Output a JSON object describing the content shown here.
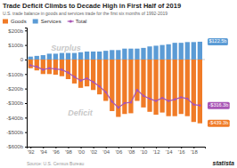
{
  "chart_data": {
    "type": "bar",
    "title": "Trade Deficit Climbs to Decade High in First Half of 2019",
    "subtitle": "U.S. trade balance in goods and services trade for the first six months of 1992-2019",
    "source": "Source: U.S. Census Bureau",
    "credit": "statista",
    "annotations": [
      "Surplus",
      "Deficit"
    ],
    "x": [
      1992,
      1993,
      1994,
      1995,
      1996,
      1997,
      1998,
      1999,
      2000,
      2001,
      2002,
      2003,
      2004,
      2005,
      2006,
      2007,
      2008,
      2009,
      2010,
      2011,
      2012,
      2013,
      2014,
      2015,
      2016,
      2017,
      2018,
      2019
    ],
    "series": [
      {
        "name": "Goods",
        "type": "bar",
        "color": "#f07b27",
        "values": [
          -60,
          -75,
          -100,
          -100,
          -105,
          -115,
          -135,
          -165,
          -195,
          -185,
          -210,
          -240,
          -285,
          -355,
          -395,
          -375,
          -370,
          -285,
          -330,
          -360,
          -380,
          -365,
          -390,
          -390,
          -375,
          -390,
          -430,
          -439.3
        ],
        "value_labels": [
          null,
          null,
          null,
          null,
          null,
          null,
          null,
          null,
          null,
          null,
          null,
          null,
          null,
          null,
          null,
          null,
          null,
          null,
          null,
          null,
          null,
          null,
          null,
          null,
          null,
          null,
          null,
          "-$439.3b"
        ]
      },
      {
        "name": "Services",
        "type": "bar",
        "color": "#5b9bd5",
        "values": [
          20,
          25,
          30,
          40,
          40,
          45,
          45,
          45,
          50,
          55,
          55,
          55,
          60,
          65,
          65,
          75,
          75,
          75,
          80,
          90,
          95,
          100,
          105,
          115,
          115,
          120,
          120,
          122.5
        ],
        "value_labels": [
          null,
          null,
          null,
          null,
          null,
          null,
          null,
          null,
          null,
          null,
          null,
          null,
          null,
          null,
          null,
          null,
          null,
          null,
          null,
          null,
          null,
          null,
          null,
          null,
          null,
          null,
          null,
          "$122.5b"
        ]
      },
      {
        "name": "Total",
        "type": "line",
        "color": "#a855b5",
        "marker": "circle",
        "values": [
          -40,
          -50,
          -70,
          -60,
          -65,
          -70,
          -90,
          -120,
          -145,
          -130,
          -155,
          -185,
          -225,
          -290,
          -330,
          -300,
          -295,
          -210,
          -250,
          -270,
          -285,
          -265,
          -285,
          -275,
          -260,
          -270,
          -310,
          -316.3
        ],
        "value_labels": [
          null,
          null,
          null,
          null,
          null,
          null,
          null,
          null,
          null,
          null,
          null,
          null,
          null,
          null,
          null,
          null,
          null,
          null,
          null,
          null,
          null,
          null,
          null,
          null,
          null,
          null,
          null,
          "-$316.3b"
        ]
      }
    ],
    "xlim": [
      1991.4,
      2019.8
    ],
    "xticks": [
      {
        "value": 1992,
        "label": "'92"
      },
      {
        "value": 1994,
        "label": "'94"
      },
      {
        "value": 1996,
        "label": "'96"
      },
      {
        "value": 1998,
        "label": "'98"
      },
      {
        "value": 2000,
        "label": "'00"
      },
      {
        "value": 2002,
        "label": "'02"
      },
      {
        "value": 2004,
        "label": "'04"
      },
      {
        "value": 2006,
        "label": "'06"
      },
      {
        "value": 2008,
        "label": "'08"
      },
      {
        "value": 2010,
        "label": "'10"
      },
      {
        "value": 2012,
        "label": "'12"
      },
      {
        "value": 2014,
        "label": "'14"
      },
      {
        "value": 2016,
        "label": "'16"
      },
      {
        "value": 2018,
        "label": "'18"
      }
    ],
    "ylim": [
      -600,
      220
    ],
    "yticks": [
      {
        "value": -600,
        "label": "-$600b"
      },
      {
        "value": -500,
        "label": "-$500b"
      },
      {
        "value": -400,
        "label": "-$400b"
      },
      {
        "value": -300,
        "label": "-$300b"
      },
      {
        "value": -200,
        "label": "-$200b"
      },
      {
        "value": -100,
        "label": "-$100b"
      },
      0,
      {
        "value": 100,
        "label": "$100b"
      },
      {
        "value": 200,
        "label": "$200b"
      }
    ],
    "grid": false,
    "legend": "upper left"
  }
}
